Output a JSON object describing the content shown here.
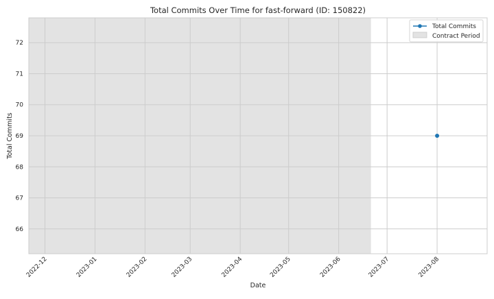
{
  "chart_data": {
    "type": "line",
    "title": "Total Commits Over Time for fast-forward (ID: 150822)",
    "xlabel": "Date",
    "ylabel": "Total Commits",
    "xlim": [
      "2022-11-21",
      "2023-09-01"
    ],
    "ylim": [
      65.2,
      72.8
    ],
    "x_ticks": [
      "2022-12-01",
      "2023-01-01",
      "2023-02-01",
      "2023-03-01",
      "2023-04-01",
      "2023-05-01",
      "2023-06-01",
      "2023-07-01",
      "2023-08-01"
    ],
    "x_tick_labels": [
      "2022-12",
      "2023-01",
      "2023-02",
      "2023-03",
      "2023-04",
      "2023-05",
      "2023-06",
      "2023-07",
      "2023-08"
    ],
    "y_ticks": [
      66,
      67,
      68,
      69,
      70,
      71,
      72
    ],
    "grid": true,
    "legend_position": "top-right",
    "series": [
      {
        "name": "Total Commits",
        "color": "#1f77b4",
        "marker": "circle",
        "points": [
          {
            "x": "2023-08-01",
            "y": 69
          }
        ]
      }
    ],
    "shaded_regions": [
      {
        "name": "Contract Period",
        "start": "2022-11-21",
        "end": "2023-06-21",
        "color": "#e3e3e3"
      }
    ]
  }
}
